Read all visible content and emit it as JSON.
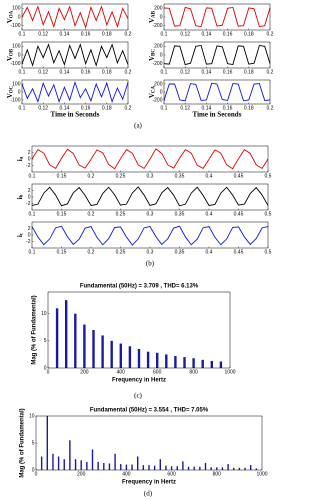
{
  "captions": [
    "(a)",
    "(b)",
    "(c)",
    "(d)"
  ],
  "chart_data": [
    {
      "type": "line",
      "ylabel": "V",
      "ylabel_sub": "OA",
      "x": [
        0.1,
        0.105,
        0.11,
        0.115,
        0.12,
        0.125,
        0.13,
        0.135,
        0.14,
        0.145,
        0.15,
        0.155,
        0.16,
        0.165,
        0.17,
        0.175,
        0.18,
        0.185,
        0.19,
        0.195,
        0.2
      ],
      "xlim": [
        0.1,
        0.2
      ],
      "xticks": [
        0.1,
        0.12,
        0.14,
        0.16,
        0.18,
        0.2
      ],
      "ylim": [
        -150,
        150
      ],
      "yticks": [
        -100,
        0,
        100
      ],
      "series": [
        {
          "color": "#e00000",
          "values": [
            0,
            110,
            -40,
            120,
            -90,
            60,
            -110,
            100,
            -30,
            120,
            -100,
            50,
            -120,
            110,
            -40,
            120,
            -90,
            60,
            -110,
            100,
            -20
          ]
        }
      ]
    },
    {
      "type": "line",
      "ylabel": "V",
      "ylabel_sub": "OB",
      "x": [
        0.1,
        0.105,
        0.11,
        0.115,
        0.12,
        0.125,
        0.13,
        0.135,
        0.14,
        0.145,
        0.15,
        0.155,
        0.16,
        0.165,
        0.17,
        0.175,
        0.18,
        0.185,
        0.19,
        0.195,
        0.2
      ],
      "xlim": [
        0.1,
        0.2
      ],
      "xticks": [
        0.1,
        0.12,
        0.14,
        0.16,
        0.18,
        0.2
      ],
      "ylim": [
        -150,
        150
      ],
      "yticks": [
        -100,
        0,
        100
      ],
      "series": [
        {
          "color": "#000000",
          "values": [
            -100,
            60,
            -120,
            100,
            -30,
            120,
            -90,
            50,
            -110,
            110,
            -40,
            120,
            -100,
            60,
            -120,
            100,
            -30,
            120,
            -90,
            50,
            -110
          ]
        }
      ]
    },
    {
      "type": "line",
      "ylabel": "V",
      "ylabel_sub": "OC",
      "xlabel": "Time in Seconds",
      "x": [
        0.1,
        0.105,
        0.11,
        0.115,
        0.12,
        0.125,
        0.13,
        0.135,
        0.14,
        0.145,
        0.15,
        0.155,
        0.16,
        0.165,
        0.17,
        0.175,
        0.18,
        0.185,
        0.19,
        0.195,
        0.2
      ],
      "xlim": [
        0.1,
        0.2
      ],
      "xticks": [
        0.1,
        0.12,
        0.14,
        0.16,
        0.18,
        0.2
      ],
      "ylim": [
        -150,
        150
      ],
      "yticks": [
        -100,
        0,
        100
      ],
      "series": [
        {
          "color": "#0a14e6",
          "values": [
            100,
            -80,
            40,
            -120,
            110,
            -50,
            90,
            -120,
            60,
            -100,
            120,
            -70,
            40,
            -110,
            100,
            -60,
            110,
            -120,
            50,
            -90,
            120
          ]
        }
      ]
    },
    {
      "type": "line",
      "ylabel": "V",
      "ylabel_sub": "AB",
      "x": [
        0.1,
        0.105,
        0.11,
        0.115,
        0.12,
        0.125,
        0.13,
        0.135,
        0.14,
        0.145,
        0.15,
        0.155,
        0.16,
        0.165,
        0.17,
        0.175,
        0.18,
        0.185,
        0.19,
        0.195,
        0.2
      ],
      "xlim": [
        0.1,
        0.2
      ],
      "xticks": [
        0.1,
        0.12,
        0.14,
        0.16,
        0.18,
        0.2
      ],
      "ylim": [
        -300,
        300
      ],
      "yticks": [
        -200,
        0,
        200
      ],
      "series": [
        {
          "color": "#e00000",
          "values": [
            210,
            200,
            -210,
            -200,
            220,
            190,
            -200,
            -220,
            210,
            200,
            -210,
            -190,
            200,
            220,
            -210,
            -200,
            210,
            190,
            -220,
            -200,
            210
          ]
        }
      ]
    },
    {
      "type": "line",
      "ylabel": "V",
      "ylabel_sub": "BC",
      "x": [
        0.1,
        0.105,
        0.11,
        0.115,
        0.12,
        0.125,
        0.13,
        0.135,
        0.14,
        0.145,
        0.15,
        0.155,
        0.16,
        0.165,
        0.17,
        0.175,
        0.18,
        0.185,
        0.19,
        0.195,
        0.2
      ],
      "xlim": [
        0.1,
        0.2
      ],
      "xticks": [
        0.1,
        0.12,
        0.14,
        0.16,
        0.18,
        0.2
      ],
      "ylim": [
        -300,
        300
      ],
      "yticks": [
        -200,
        0,
        200
      ],
      "series": [
        {
          "color": "#000000",
          "values": [
            -200,
            -210,
            210,
            200,
            -220,
            -190,
            200,
            220,
            -210,
            -200,
            210,
            190,
            -200,
            -220,
            210,
            200,
            -210,
            -190,
            220,
            200,
            -200
          ]
        }
      ]
    },
    {
      "type": "line",
      "ylabel": "V",
      "ylabel_sub": "CA",
      "xlabel": "Time in Seconds",
      "x": [
        0.1,
        0.105,
        0.11,
        0.115,
        0.12,
        0.125,
        0.13,
        0.135,
        0.14,
        0.145,
        0.15,
        0.155,
        0.16,
        0.165,
        0.17,
        0.175,
        0.18,
        0.185,
        0.19,
        0.195,
        0.2
      ],
      "xlim": [
        0.1,
        0.2
      ],
      "xticks": [
        0.1,
        0.12,
        0.14,
        0.16,
        0.18,
        0.2
      ],
      "ylim": [
        -300,
        300
      ],
      "yticks": [
        -200,
        0,
        200
      ],
      "series": [
        {
          "color": "#0a14e6",
          "values": [
            -210,
            200,
            200,
            -200,
            -220,
            210,
            190,
            -210,
            -200,
            220,
            200,
            -190,
            -210,
            210,
            200,
            -220,
            -200,
            200,
            210,
            -210,
            -200
          ]
        }
      ]
    },
    {
      "type": "line",
      "ylabel": "i",
      "ylabel_sub": "a",
      "x": [
        0.1,
        0.11,
        0.12,
        0.13,
        0.14,
        0.15,
        0.16,
        0.17,
        0.18,
        0.19,
        0.2,
        0.21,
        0.22,
        0.23,
        0.24,
        0.25,
        0.26,
        0.27,
        0.28,
        0.29,
        0.3,
        0.31,
        0.32,
        0.33,
        0.34,
        0.35,
        0.36,
        0.37,
        0.38,
        0.39,
        0.4,
        0.41,
        0.42,
        0.43,
        0.44,
        0.45,
        0.46,
        0.47,
        0.48,
        0.49,
        0.5
      ],
      "xlim": [
        0.1,
        0.5
      ],
      "xticks": [
        0.1,
        0.15,
        0.2,
        0.25,
        0.3,
        0.35,
        0.4,
        0.45,
        0.5
      ],
      "ylim": [
        -4,
        4
      ],
      "yticks": [
        -2,
        0,
        2
      ],
      "series": [
        {
          "color": "#e00000",
          "values": [
            0,
            2.9,
            1.8,
            -1.8,
            -2.9,
            0.2,
            3.0,
            1.7,
            -1.9,
            -2.8,
            -0.1,
            2.8,
            1.9,
            -1.7,
            -3.0,
            0.1,
            2.9,
            1.8,
            -1.8,
            -2.9,
            0,
            3.1,
            1.7,
            -1.8,
            -2.8,
            0.2,
            2.9,
            1.8,
            -1.9,
            -2.9,
            -0.1,
            2.8,
            1.8,
            -1.8,
            -3.0,
            0.1,
            2.9,
            1.7,
            -1.8,
            -2.9,
            0
          ]
        }
      ]
    },
    {
      "type": "line",
      "ylabel": "i",
      "ylabel_sub": "b",
      "x": [
        0.1,
        0.11,
        0.12,
        0.13,
        0.14,
        0.15,
        0.16,
        0.17,
        0.18,
        0.19,
        0.2,
        0.21,
        0.22,
        0.23,
        0.24,
        0.25,
        0.26,
        0.27,
        0.28,
        0.29,
        0.3,
        0.31,
        0.32,
        0.33,
        0.34,
        0.35,
        0.36,
        0.37,
        0.38,
        0.39,
        0.4,
        0.41,
        0.42,
        0.43,
        0.44,
        0.45,
        0.46,
        0.47,
        0.48,
        0.49,
        0.5
      ],
      "xlim": [
        0.1,
        0.5
      ],
      "xticks": [
        0.1,
        0.15,
        0.2,
        0.25,
        0.3,
        0.35,
        0.4,
        0.45,
        0.5
      ],
      "ylim": [
        -4,
        4
      ],
      "yticks": [
        -2,
        0,
        2
      ],
      "series": [
        {
          "color": "#000000",
          "values": [
            -2.6,
            -2.2,
            1.2,
            3.0,
            0.6,
            -2.7,
            -2.1,
            1.3,
            2.9,
            0.5,
            -2.6,
            -2.3,
            1.1,
            3.0,
            0.7,
            -2.5,
            -2.2,
            1.2,
            3.1,
            0.6,
            -2.6,
            -2.1,
            1.3,
            2.9,
            0.6,
            -2.7,
            -2.2,
            1.2,
            3.0,
            0.5,
            -2.6,
            -2.3,
            1.2,
            3.0,
            0.6,
            -2.5,
            -2.2,
            1.1,
            2.9,
            0.6,
            -2.6
          ]
        }
      ]
    },
    {
      "type": "line",
      "ylabel": "i",
      "ylabel_sub": "c",
      "x": [
        0.1,
        0.11,
        0.12,
        0.13,
        0.14,
        0.15,
        0.16,
        0.17,
        0.18,
        0.19,
        0.2,
        0.21,
        0.22,
        0.23,
        0.24,
        0.25,
        0.26,
        0.27,
        0.28,
        0.29,
        0.3,
        0.31,
        0.32,
        0.33,
        0.34,
        0.35,
        0.36,
        0.37,
        0.38,
        0.39,
        0.4,
        0.41,
        0.42,
        0.43,
        0.44,
        0.45,
        0.46,
        0.47,
        0.48,
        0.49,
        0.5
      ],
      "xlim": [
        0.1,
        0.5
      ],
      "xticks": [
        0.1,
        0.15,
        0.2,
        0.25,
        0.3,
        0.35,
        0.4,
        0.45,
        0.5
      ],
      "ylim": [
        -4,
        4
      ],
      "yticks": [
        -2,
        0,
        2
      ],
      "series": [
        {
          "color": "#0a14e6",
          "values": [
            2.6,
            -0.6,
            -3.0,
            -1.2,
            2.2,
            2.7,
            -0.5,
            -2.9,
            -1.3,
            2.1,
            2.6,
            -0.7,
            -3.0,
            -1.1,
            2.3,
            2.5,
            -0.6,
            -3.1,
            -1.2,
            2.2,
            2.6,
            -0.5,
            -2.9,
            -1.2,
            2.1,
            2.7,
            -0.6,
            -3.0,
            -1.3,
            2.2,
            2.6,
            -0.7,
            -3.0,
            -1.2,
            2.3,
            2.5,
            -0.6,
            -2.9,
            -1.1,
            2.2,
            2.6
          ]
        }
      ]
    },
    {
      "type": "bar",
      "title": "Fundamental (50Hz) = 3.709 , THD= 6.13%",
      "xlabel": "Frequency in Hertz",
      "ylabel": "Mag (% of Fundamental)",
      "color": "#1a1aa0",
      "x": [
        50,
        100,
        150,
        200,
        250,
        300,
        350,
        400,
        450,
        500,
        550,
        600,
        650,
        700,
        750,
        800,
        850,
        900,
        950
      ],
      "values": [
        11,
        12.5,
        10,
        8,
        7,
        6,
        5,
        4.5,
        4,
        3.5,
        3,
        2.8,
        2.5,
        2.2,
        2,
        1.8,
        1.5,
        1.3,
        1.2
      ],
      "xlim": [
        0,
        1000
      ],
      "xticks": [
        0,
        200,
        400,
        600,
        800,
        1000
      ],
      "ylim": [
        0,
        14
      ],
      "yticks": [
        0,
        5,
        10
      ]
    },
    {
      "type": "bar",
      "title": "Fundamental (50Hz) = 3.554 , THD= 7.05%",
      "xlabel": "Frequency in Hertz",
      "ylabel": "Mag (% of Fundamental)",
      "color": "#1a1aa0",
      "x": [
        25,
        50,
        75,
        100,
        125,
        150,
        175,
        200,
        225,
        250,
        275,
        300,
        325,
        350,
        375,
        400,
        425,
        450,
        475,
        500,
        525,
        550,
        575,
        600,
        625,
        650,
        675,
        700,
        725,
        750,
        775,
        800,
        825,
        850,
        875,
        900,
        925,
        950,
        975
      ],
      "values": [
        2.5,
        10,
        3,
        2.5,
        2,
        5.5,
        2,
        1.8,
        1.5,
        3.8,
        1.5,
        1.3,
        1.2,
        3,
        1.1,
        1,
        1,
        2.5,
        0.9,
        0.9,
        0.8,
        2,
        0.8,
        0.7,
        0.7,
        1.6,
        0.6,
        0.6,
        0.6,
        1.3,
        0.5,
        0.5,
        0.5,
        1.1,
        0.4,
        0.4,
        0.4,
        0.9,
        0.3
      ],
      "xlim": [
        0,
        1000
      ],
      "xticks": [
        0,
        200,
        400,
        600,
        800,
        1000
      ],
      "ylim": [
        0,
        10
      ],
      "yticks": [
        0,
        5,
        10
      ]
    }
  ]
}
